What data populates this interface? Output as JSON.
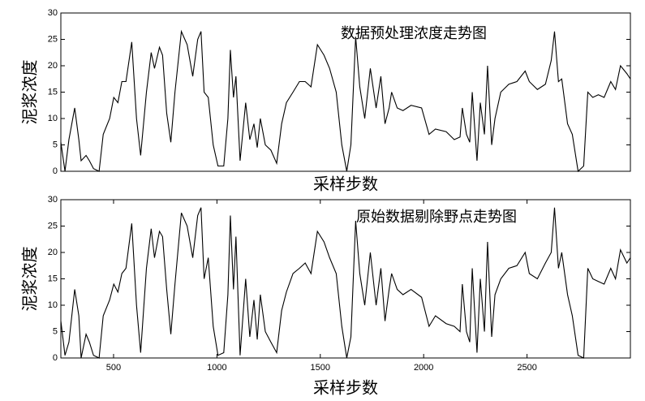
{
  "chart_data": [
    {
      "type": "line",
      "title": "数据预处理浓度走势图",
      "ylabel": "泥浆浓度",
      "xlabel": "采样步数",
      "color": "#000000",
      "xlim": [
        245,
        3000
      ],
      "ylim": [
        0,
        30
      ],
      "yticks": [
        0,
        5,
        10,
        15,
        20,
        25,
        30
      ],
      "x": [
        245,
        265,
        284,
        312,
        332,
        343,
        367,
        383,
        403,
        430,
        450,
        481,
        501,
        521,
        540,
        560,
        588,
        611,
        631,
        659,
        682,
        698,
        722,
        737,
        757,
        777,
        797,
        828,
        856,
        883,
        907,
        923,
        938,
        958,
        982,
        1005,
        1033,
        1053,
        1065,
        1080,
        1092,
        1112,
        1139,
        1159,
        1179,
        1195,
        1210,
        1234,
        1261,
        1289,
        1313,
        1336,
        1368,
        1399,
        1427,
        1455,
        1486,
        1518,
        1545,
        1577,
        1604,
        1628,
        1648,
        1671,
        1691,
        1715,
        1742,
        1770,
        1793,
        1813,
        1833,
        1845,
        1872,
        1900,
        1939,
        1990,
        2026,
        2057,
        2109,
        2148,
        2176,
        2187,
        2207,
        2223,
        2235,
        2258,
        2274,
        2294,
        2309,
        2329,
        2345,
        2373,
        2412,
        2451,
        2491,
        2511,
        2550,
        2589,
        2617,
        2633,
        2652,
        2668,
        2696,
        2719,
        2747,
        2774,
        2794,
        2818,
        2845,
        2873,
        2905,
        2928,
        2952,
        2983,
        3000
      ],
      "values": [
        5.5,
        0,
        6,
        12,
        6,
        2,
        3,
        2,
        0.5,
        0,
        7,
        10,
        14,
        13,
        17,
        17,
        24.5,
        10,
        3,
        15,
        22.5,
        19.5,
        23.5,
        22,
        11,
        5.5,
        15,
        26.5,
        24,
        18,
        25,
        26.5,
        15,
        14,
        5,
        1,
        1,
        10,
        23,
        14,
        18,
        2,
        13,
        6,
        9,
        4.5,
        10,
        5,
        4,
        1.5,
        9,
        13,
        15,
        17,
        17,
        16,
        24,
        22,
        19.5,
        15,
        5,
        0,
        5,
        25.5,
        16,
        10,
        19.5,
        12,
        18,
        9,
        12,
        15,
        12,
        11.5,
        12.5,
        12,
        7,
        8,
        7.5,
        6,
        6.5,
        12,
        7,
        5.5,
        15,
        2,
        13,
        7,
        20,
        5,
        10,
        15,
        16.5,
        17,
        19,
        17,
        15.5,
        16.5,
        21,
        26.5,
        17,
        17.5,
        9,
        7,
        0,
        1,
        15,
        14,
        14.5,
        14,
        17,
        15.5,
        20,
        18.5,
        17.5
      ]
    },
    {
      "type": "line",
      "title": "原始数据剔除野点走势图",
      "ylabel": "泥浆浓度",
      "xlabel": "采样步数",
      "color": "#000000",
      "xlim": [
        245,
        3000
      ],
      "ylim": [
        0,
        30
      ],
      "yticks": [
        0,
        5,
        10,
        15,
        20,
        25,
        30
      ],
      "xticks": [
        500,
        1000,
        1500,
        2000,
        2500
      ],
      "x": [
        245,
        265,
        284,
        312,
        332,
        343,
        367,
        383,
        403,
        430,
        450,
        481,
        501,
        521,
        540,
        560,
        588,
        611,
        631,
        659,
        682,
        698,
        722,
        737,
        757,
        777,
        797,
        828,
        856,
        883,
        907,
        923,
        938,
        958,
        982,
        1005,
        1033,
        1053,
        1065,
        1080,
        1092,
        1112,
        1139,
        1159,
        1179,
        1195,
        1210,
        1234,
        1261,
        1289,
        1313,
        1336,
        1368,
        1399,
        1427,
        1455,
        1486,
        1518,
        1545,
        1577,
        1604,
        1628,
        1648,
        1671,
        1691,
        1715,
        1742,
        1770,
        1793,
        1813,
        1833,
        1845,
        1872,
        1900,
        1939,
        1990,
        2026,
        2057,
        2109,
        2148,
        2176,
        2187,
        2207,
        2223,
        2235,
        2258,
        2274,
        2294,
        2309,
        2329,
        2345,
        2373,
        2412,
        2451,
        2491,
        2511,
        2550,
        2589,
        2617,
        2633,
        2652,
        2668,
        2696,
        2719,
        2747,
        2774,
        2794,
        2818,
        2845,
        2873,
        2905,
        2928,
        2952,
        2983,
        3000
      ],
      "values": [
        7,
        0.5,
        3,
        13,
        8,
        0,
        4.5,
        3,
        0.5,
        0,
        8,
        11,
        14,
        12.5,
        16,
        17,
        25.5,
        10,
        1,
        17,
        24.5,
        19,
        24,
        23,
        13,
        4.5,
        14,
        27.5,
        25,
        19,
        27,
        28.5,
        15,
        19,
        6,
        0.5,
        1,
        12,
        27,
        13,
        23,
        0.5,
        15,
        4,
        11,
        3.5,
        12,
        5,
        3,
        1,
        9,
        12.5,
        16,
        17,
        18,
        16,
        24,
        22,
        19,
        16,
        6,
        0,
        4,
        26,
        16,
        10,
        20,
        10,
        17,
        7,
        13,
        16,
        13,
        12,
        13,
        11.5,
        6,
        8,
        6.5,
        6,
        5,
        14,
        5,
        3,
        17,
        1,
        15,
        5,
        22,
        4,
        12,
        15,
        17,
        17.5,
        20,
        16,
        15,
        18,
        20,
        28.5,
        17,
        20,
        12,
        8,
        0.5,
        0,
        17,
        15,
        14.5,
        14,
        17,
        15,
        20.5,
        18,
        19
      ]
    }
  ]
}
